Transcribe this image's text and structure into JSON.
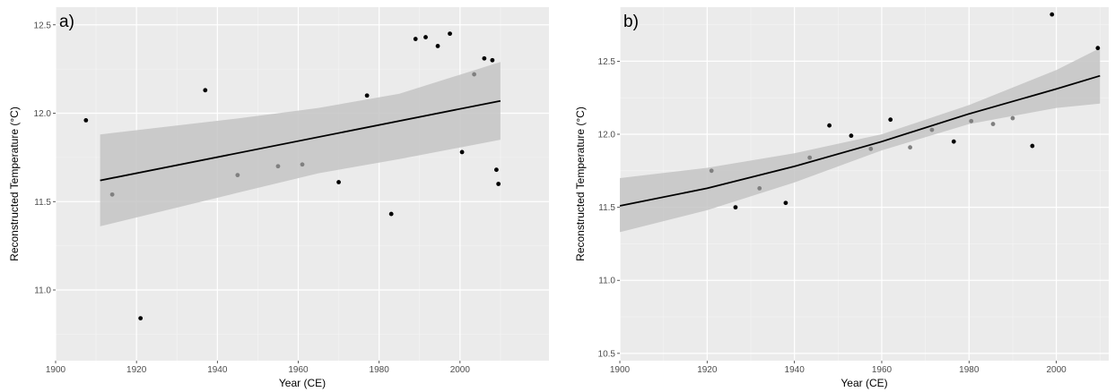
{
  "chart_data": [
    {
      "type": "scatter",
      "panel_label": "a)",
      "xlabel": "Year (CE)",
      "ylabel": "Reconstructed Temperature (°C)",
      "xlim": [
        1900,
        2022
      ],
      "ylim": [
        10.6,
        12.6
      ],
      "xticks": [
        1900,
        1920,
        1940,
        1960,
        1980,
        2000
      ],
      "yticks": [
        11.0,
        11.5,
        12.0,
        12.5
      ],
      "ytick_labels": [
        "11.0",
        "11.5",
        "12.0",
        "12.5"
      ],
      "grid": true,
      "panel_background": "#ebebeb",
      "point_colors": {
        "black": "#000000",
        "grey": "#808080"
      },
      "points": [
        {
          "x": 1907.5,
          "y": 11.96,
          "color": "black"
        },
        {
          "x": 1914,
          "y": 11.54,
          "color": "grey"
        },
        {
          "x": 1921,
          "y": 10.84,
          "color": "black"
        },
        {
          "x": 1937,
          "y": 12.13,
          "color": "black"
        },
        {
          "x": 1945,
          "y": 11.65,
          "color": "grey"
        },
        {
          "x": 1955,
          "y": 11.7,
          "color": "grey"
        },
        {
          "x": 1961,
          "y": 11.71,
          "color": "grey"
        },
        {
          "x": 1970,
          "y": 11.61,
          "color": "black"
        },
        {
          "x": 1977,
          "y": 12.1,
          "color": "black"
        },
        {
          "x": 1983,
          "y": 11.43,
          "color": "black"
        },
        {
          "x": 1989,
          "y": 12.42,
          "color": "black"
        },
        {
          "x": 1991.5,
          "y": 12.43,
          "color": "black"
        },
        {
          "x": 1994.5,
          "y": 12.38,
          "color": "black"
        },
        {
          "x": 1997.5,
          "y": 12.45,
          "color": "black"
        },
        {
          "x": 2000.5,
          "y": 11.78,
          "color": "black"
        },
        {
          "x": 2003.5,
          "y": 12.22,
          "color": "grey"
        },
        {
          "x": 2006,
          "y": 12.31,
          "color": "black"
        },
        {
          "x": 2008,
          "y": 12.3,
          "color": "black"
        },
        {
          "x": 2009,
          "y": 11.68,
          "color": "black"
        },
        {
          "x": 2009.5,
          "y": 11.6,
          "color": "black"
        }
      ],
      "fit_line": {
        "x": [
          1911,
          2010
        ],
        "y": [
          11.62,
          12.07
        ]
      },
      "ci_band": {
        "x": [
          1911,
          1945,
          1965,
          1985,
          2010
        ],
        "upper": [
          11.88,
          11.97,
          12.03,
          12.11,
          12.29
        ],
        "lower": [
          11.36,
          11.55,
          11.66,
          11.74,
          11.85
        ]
      }
    },
    {
      "type": "scatter",
      "panel_label": "b)",
      "xlabel": "Year (CE)",
      "ylabel": "Reconstructed Temperature (°C)",
      "xlim": [
        1900,
        2012
      ],
      "ylim": [
        10.45,
        12.87
      ],
      "xticks": [
        1900,
        1920,
        1940,
        1960,
        1980,
        2000
      ],
      "yticks": [
        10.5,
        11.0,
        11.5,
        12.0,
        12.5
      ],
      "ytick_labels": [
        "10.5",
        "11.0",
        "11.5",
        "12.0",
        "12.5"
      ],
      "grid": true,
      "panel_background": "#ebebeb",
      "point_colors": {
        "black": "#000000",
        "grey": "#808080"
      },
      "points": [
        {
          "x": 1921,
          "y": 11.75,
          "color": "grey"
        },
        {
          "x": 1926.5,
          "y": 11.5,
          "color": "black"
        },
        {
          "x": 1932,
          "y": 11.63,
          "color": "grey"
        },
        {
          "x": 1938,
          "y": 11.53,
          "color": "black"
        },
        {
          "x": 1943.5,
          "y": 11.84,
          "color": "grey"
        },
        {
          "x": 1948,
          "y": 12.06,
          "color": "black"
        },
        {
          "x": 1953,
          "y": 11.99,
          "color": "black"
        },
        {
          "x": 1957.5,
          "y": 11.9,
          "color": "grey"
        },
        {
          "x": 1962,
          "y": 12.1,
          "color": "black"
        },
        {
          "x": 1966.5,
          "y": 11.91,
          "color": "grey"
        },
        {
          "x": 1971.5,
          "y": 12.03,
          "color": "grey"
        },
        {
          "x": 1976.5,
          "y": 11.95,
          "color": "black"
        },
        {
          "x": 1980.5,
          "y": 12.09,
          "color": "grey"
        },
        {
          "x": 1985.5,
          "y": 12.07,
          "color": "grey"
        },
        {
          "x": 1990,
          "y": 12.11,
          "color": "grey"
        },
        {
          "x": 1994.5,
          "y": 11.92,
          "color": "black"
        },
        {
          "x": 1999,
          "y": 12.82,
          "color": "black"
        },
        {
          "x": 2009.5,
          "y": 12.59,
          "color": "black"
        }
      ],
      "fit_line": {
        "x": [
          1900,
          1920,
          1940,
          1960,
          1980,
          2000,
          2010
        ],
        "y": [
          11.51,
          11.63,
          11.78,
          11.95,
          12.14,
          12.31,
          12.4
        ]
      },
      "ci_band": {
        "x": [
          1900,
          1920,
          1940,
          1960,
          1980,
          2000,
          2010
        ],
        "upper": [
          11.7,
          11.77,
          11.87,
          12.0,
          12.2,
          12.44,
          12.59
        ],
        "lower": [
          11.33,
          11.48,
          11.67,
          11.89,
          12.07,
          12.18,
          12.21
        ]
      }
    }
  ]
}
